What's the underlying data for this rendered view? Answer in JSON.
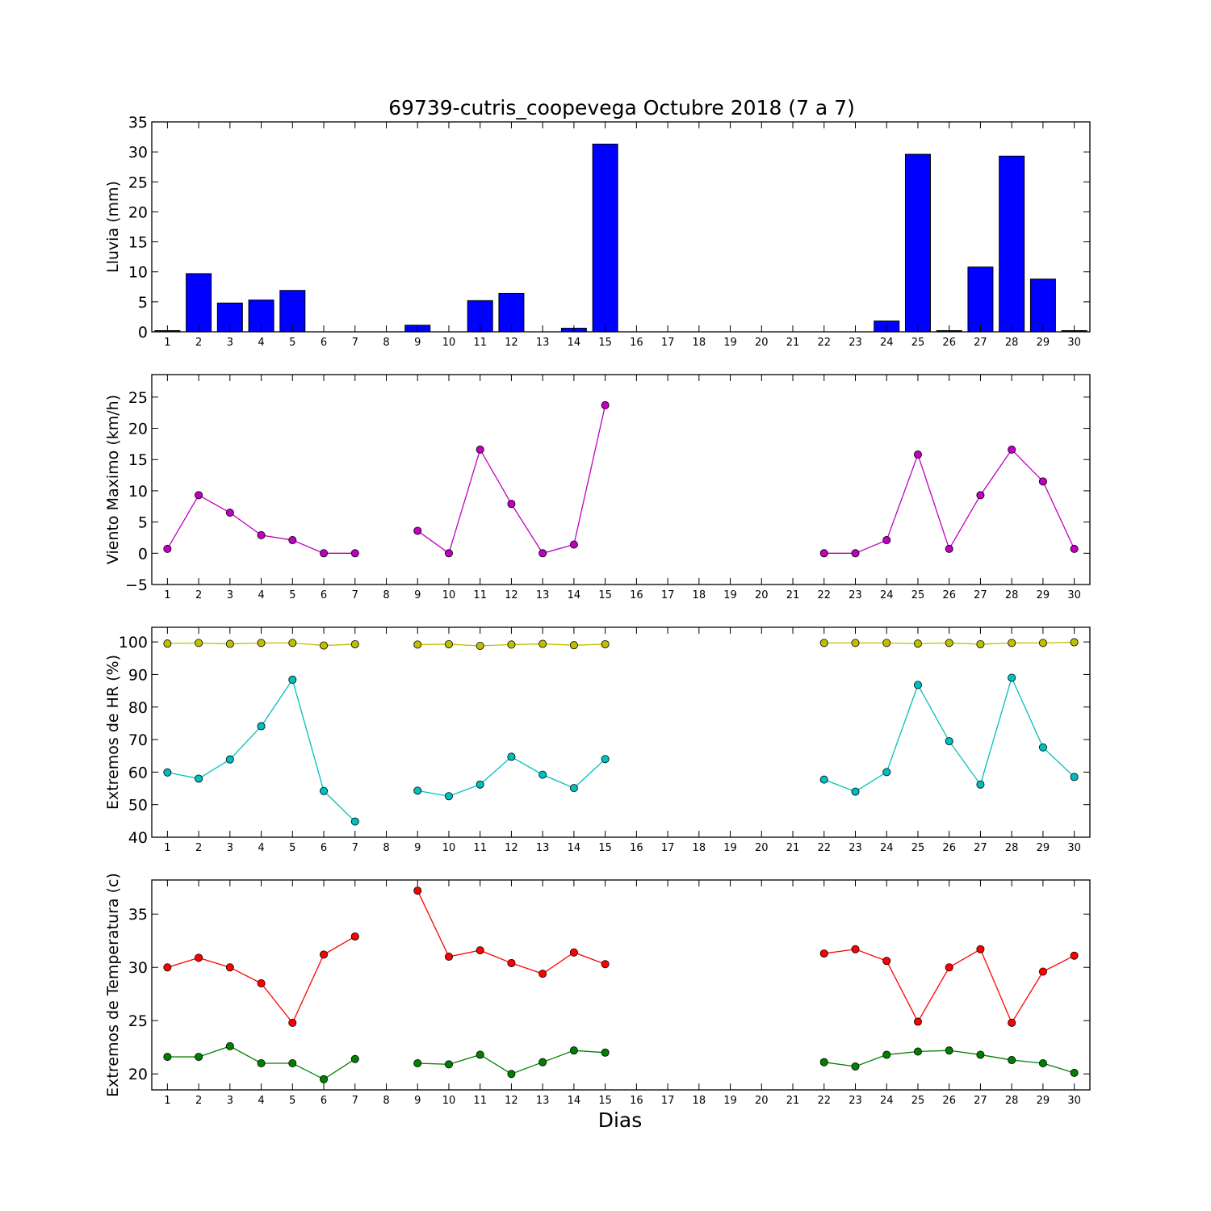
{
  "title": "69739-cutris_coopevega Octubre 2018  (7 a 7)",
  "xlabel": "Dias",
  "days": [
    "1",
    "2",
    "3",
    "4",
    "5",
    "6",
    "7",
    "8",
    "9",
    "10",
    "11",
    "12",
    "13",
    "14",
    "15",
    "16",
    "17",
    "18",
    "19",
    "20",
    "21",
    "22",
    "23",
    "24",
    "25",
    "26",
    "27",
    "28",
    "29",
    "30"
  ],
  "chart_data": [
    {
      "type": "bar",
      "ylabel": "Lluvia (mm)",
      "ylim": [
        0,
        35
      ],
      "yticks": [
        0,
        5,
        10,
        15,
        20,
        25,
        30,
        35
      ],
      "color": "#0000ff",
      "values": [
        0.2,
        9.7,
        4.8,
        5.3,
        6.9,
        0,
        0,
        null,
        1.1,
        0,
        5.2,
        6.4,
        0,
        0.6,
        31.3,
        0,
        0,
        0,
        0,
        0,
        0,
        0,
        0,
        1.8,
        29.6,
        0.2,
        10.8,
        29.3,
        8.8,
        0.2
      ]
    },
    {
      "type": "line",
      "ylabel": "Viento Maximo (km/h)",
      "ylim": [
        -5,
        28.6
      ],
      "yticks": [
        -5,
        0,
        5,
        10,
        15,
        20,
        25
      ],
      "series": [
        {
          "color": "#bf00bf",
          "values": [
            0.7,
            9.3,
            6.5,
            2.9,
            2.1,
            0,
            0,
            null,
            3.6,
            0,
            16.6,
            7.9,
            0,
            1.4,
            23.7,
            null,
            null,
            null,
            null,
            null,
            null,
            0,
            0,
            2.1,
            15.8,
            0.7,
            9.3,
            16.6,
            11.5,
            0.7
          ]
        }
      ]
    },
    {
      "type": "line",
      "ylabel": "Extremos de HR (%)",
      "ylim": [
        40,
        104.5
      ],
      "yticks": [
        40,
        50,
        60,
        70,
        80,
        90,
        100
      ],
      "series": [
        {
          "color": "#bfbf00",
          "values": [
            99.5,
            99.7,
            99.4,
            99.7,
            99.7,
            98.9,
            99.3,
            null,
            99.2,
            99.3,
            98.8,
            99.2,
            99.4,
            99.0,
            99.3,
            null,
            null,
            null,
            null,
            null,
            null,
            99.7,
            99.7,
            99.7,
            99.5,
            99.7,
            99.3,
            99.7,
            99.7,
            99.9
          ]
        },
        {
          "color": "#00bfbf",
          "values": [
            59.9,
            58.0,
            63.9,
            74.1,
            88.4,
            54.2,
            44.8,
            null,
            54.3,
            52.6,
            56.2,
            64.7,
            59.2,
            55.1,
            64.0,
            null,
            null,
            null,
            null,
            null,
            null,
            57.7,
            54.0,
            60.0,
            86.8,
            69.5,
            56.2,
            89.0,
            67.6,
            58.5
          ]
        }
      ]
    },
    {
      "type": "line",
      "ylabel": "Extremos de Temperatura (c)",
      "ylim": [
        18.5,
        38.2
      ],
      "yticks": [
        20,
        25,
        30,
        35
      ],
      "series": [
        {
          "color": "#ff0000",
          "values": [
            30.0,
            30.9,
            30.0,
            28.5,
            24.8,
            31.2,
            32.9,
            null,
            37.2,
            31.0,
            31.6,
            30.4,
            29.4,
            31.4,
            30.3,
            null,
            null,
            null,
            null,
            null,
            null,
            31.3,
            31.7,
            30.6,
            24.9,
            30.0,
            31.7,
            24.8,
            29.6,
            31.1
          ]
        },
        {
          "color": "#008000",
          "values": [
            21.6,
            21.6,
            22.6,
            21.0,
            21.0,
            19.5,
            21.4,
            null,
            21.0,
            20.9,
            21.8,
            20.0,
            21.1,
            22.2,
            22.0,
            null,
            null,
            null,
            null,
            null,
            null,
            21.1,
            20.7,
            21.8,
            22.1,
            22.2,
            21.8,
            21.3,
            21.0,
            20.1
          ]
        }
      ]
    }
  ]
}
